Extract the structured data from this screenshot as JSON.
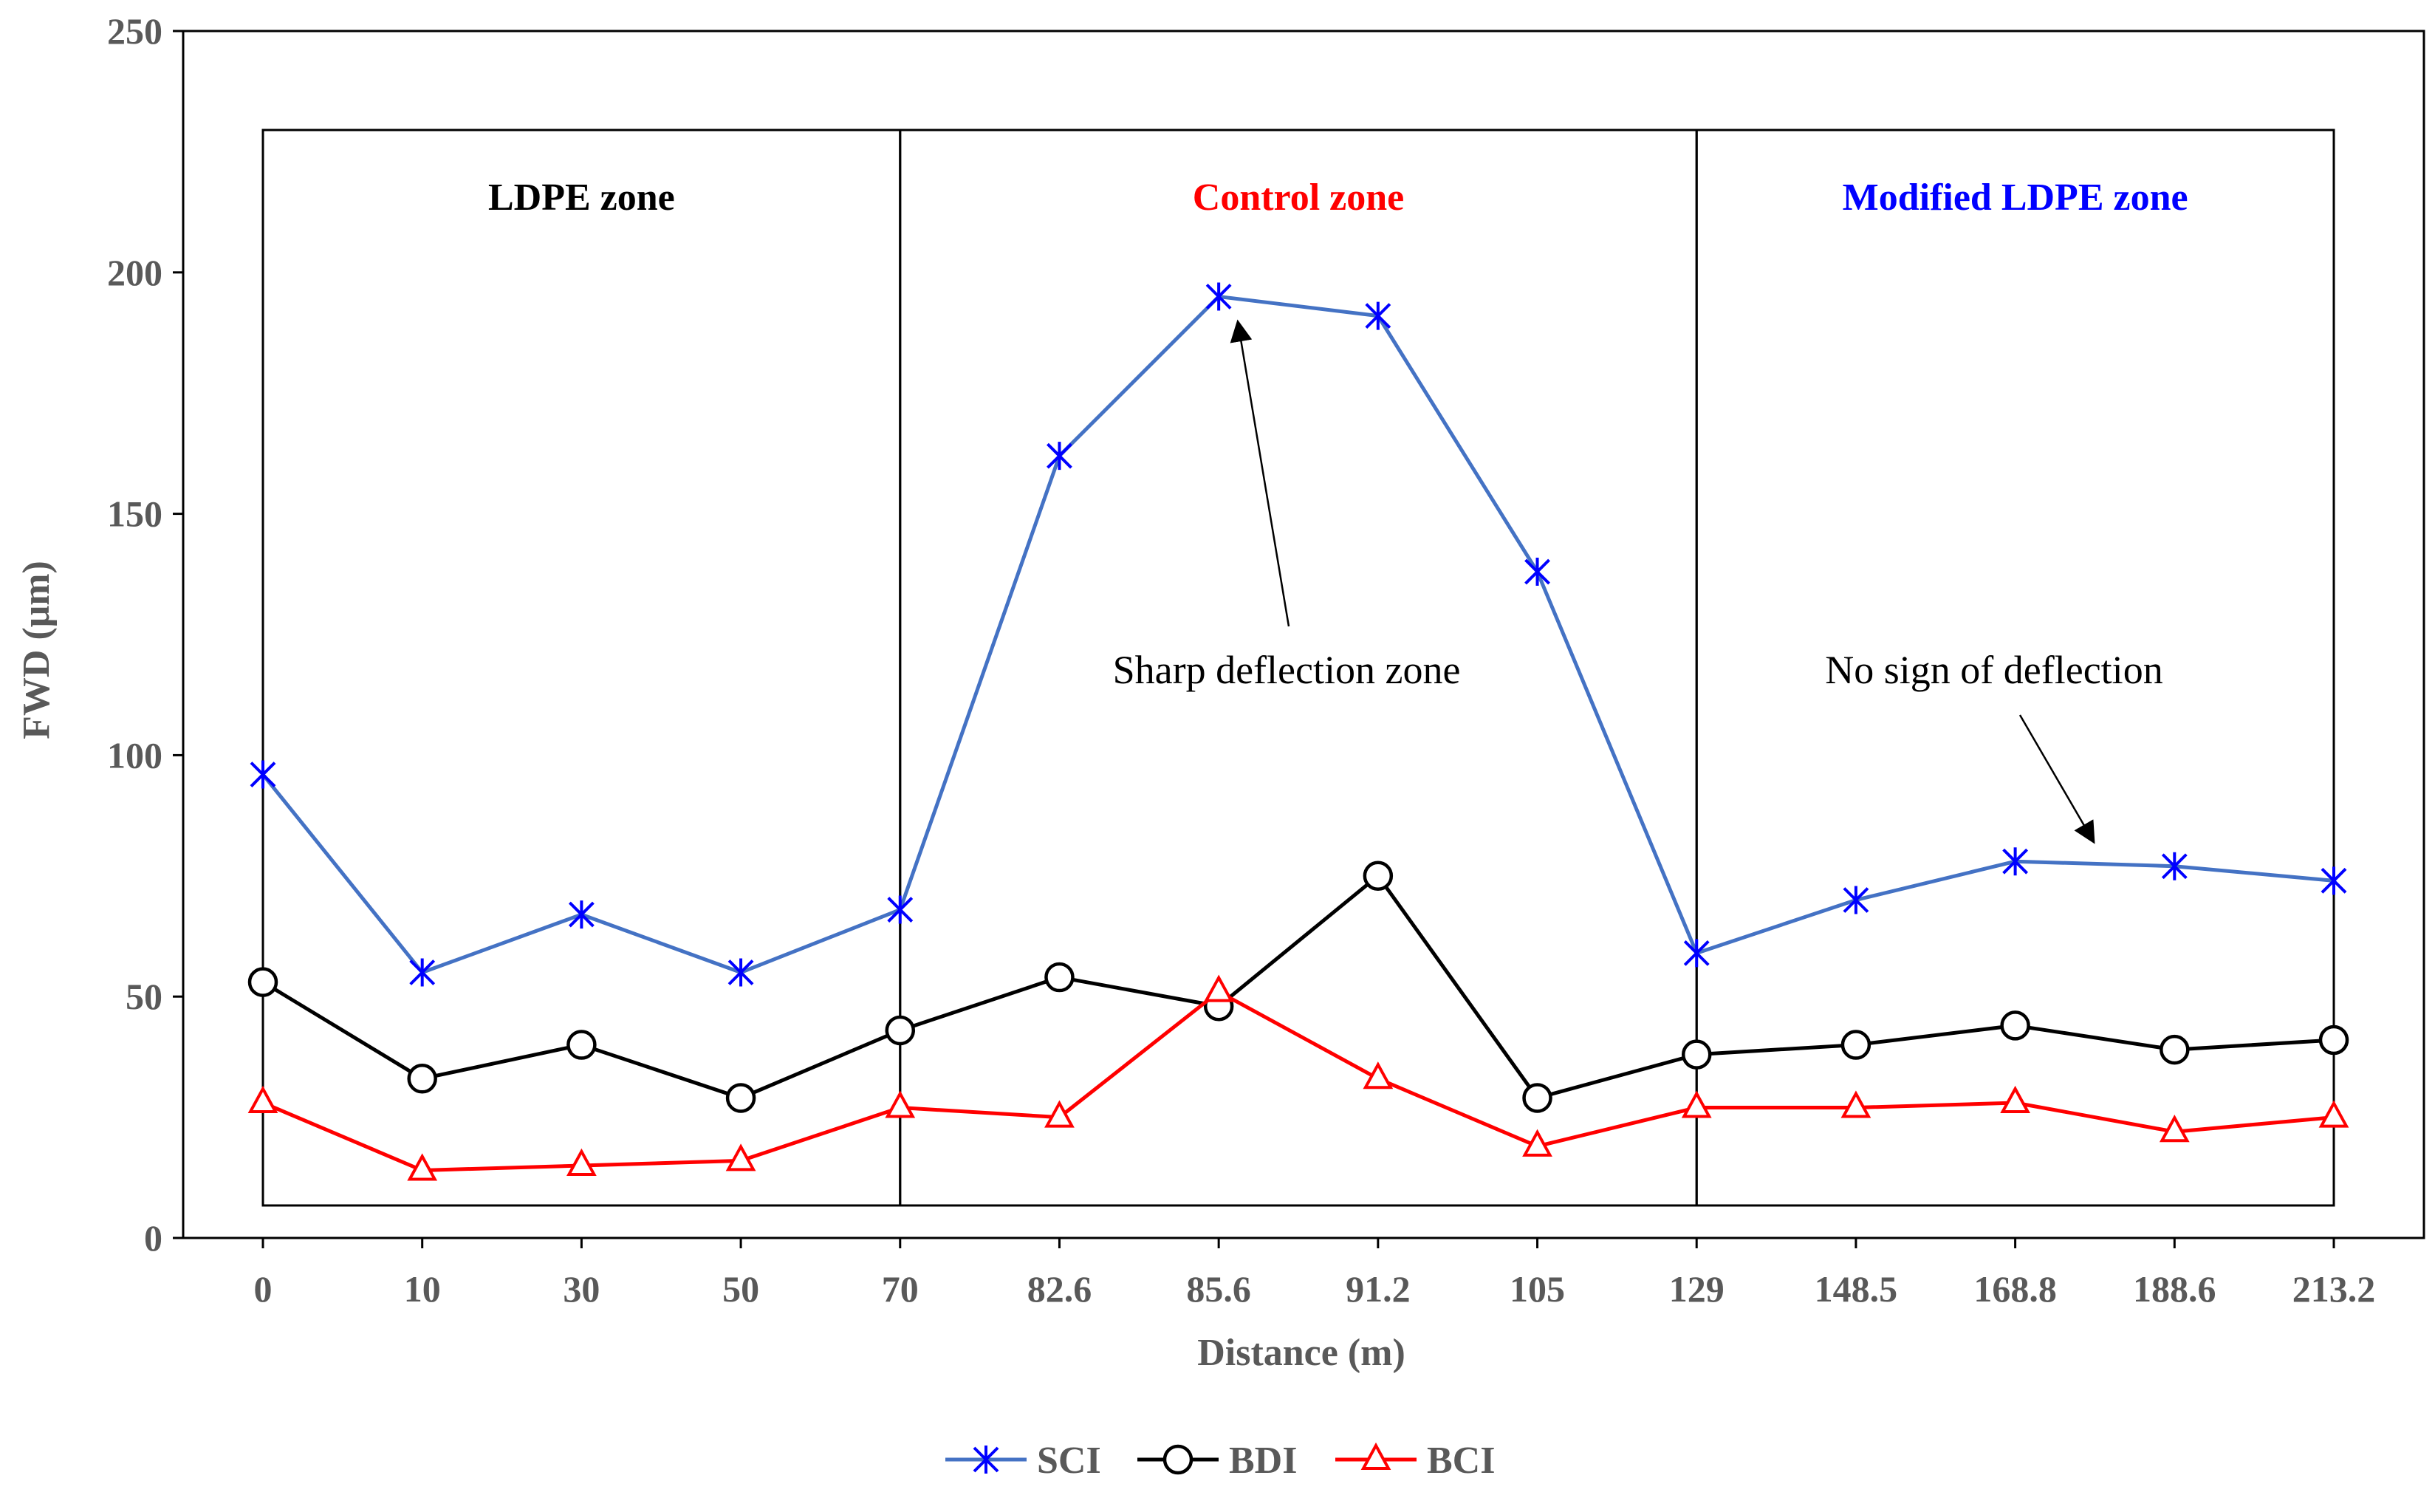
{
  "chart_data": {
    "type": "line",
    "categories": [
      "0",
      "10",
      "30",
      "50",
      "70",
      "82.6",
      "85.6",
      "91.2",
      "105",
      "129",
      "148.5",
      "168.8",
      "188.6",
      "213.2"
    ],
    "series": [
      {
        "name": "SCI",
        "color": "#4472C4",
        "marker_color": "#0000FF",
        "marker": "asterisk",
        "values": [
          96,
          55,
          67,
          55,
          68,
          162,
          195,
          191,
          138,
          59,
          70,
          78,
          77,
          74
        ]
      },
      {
        "name": "BDI",
        "color": "#000000",
        "marker_color": "#000000",
        "marker": "circle",
        "values": [
          53,
          33,
          40,
          29,
          43,
          54,
          48,
          75,
          29,
          38,
          40,
          44,
          39,
          41
        ]
      },
      {
        "name": "BCI",
        "color": "#FF0000",
        "marker_color": "#FF0000",
        "marker": "triangle",
        "values": [
          28,
          14,
          15,
          16,
          27,
          25,
          51,
          33,
          19,
          27,
          27,
          28,
          22,
          25
        ]
      }
    ],
    "ylim": [
      0,
      250
    ],
    "yticks": [
      0,
      50,
      100,
      150,
      200,
      250
    ],
    "xlabel": "Distance (m)",
    "ylabel": "FWD (μm)",
    "grid": false,
    "legend_position": "bottom-center",
    "zones": [
      {
        "label": "LDPE zone",
        "color": "#000000",
        "from_index": 0,
        "to_index": 4
      },
      {
        "label": "Control zone",
        "color": "#FF0000",
        "from_index": 4,
        "to_index": 9
      },
      {
        "label": "Modified LDPE zone",
        "color": "#0000FF",
        "from_index": 9,
        "to_index": 13
      }
    ],
    "annotations": [
      {
        "text": "Sharp deflection zone",
        "points_to_index": 6,
        "points_to_value": 195
      },
      {
        "text": "No sign of deflection",
        "points_to_value": 82
      }
    ]
  }
}
